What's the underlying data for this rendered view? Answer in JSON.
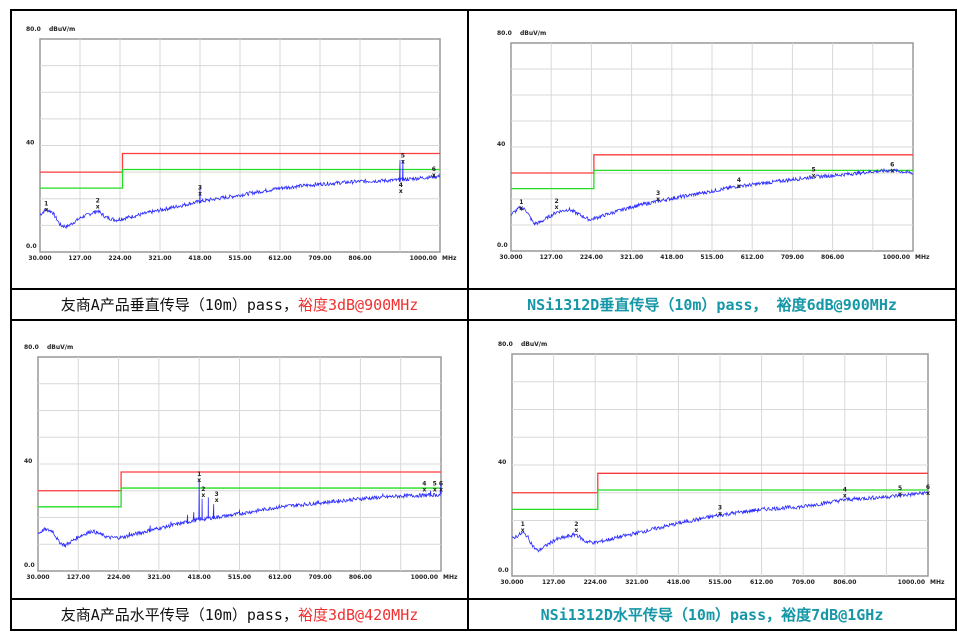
{
  "colors": {
    "limit_red": "#ff3b3b",
    "limit_green": "#22dd22",
    "trace": "#2b2bff",
    "caption_red": "#f03030",
    "caption_teal": "#1597a7",
    "grid": "#d8d8d8"
  },
  "captions": [
    {
      "plain": "友商A产品垂直传导（10m）pass，",
      "highlight": "裕度3dB@900MHz",
      "highlight_color": "red"
    },
    {
      "plain": "",
      "highlight": "NSi1312D垂直传导（10m）pass， 裕度6dB@900MHz",
      "highlight_color": "teal"
    },
    {
      "plain": "友商A产品水平传导（10m）pass，",
      "highlight": "裕度3dB@420MHz",
      "highlight_color": "red"
    },
    {
      "plain": "",
      "highlight": "NSi1312D水平传导（10m）pass，裕度7dB@1GHz",
      "highlight_color": "teal"
    }
  ],
  "chart_data": [
    {
      "type": "line",
      "ylabel": "dBuV/m",
      "xunit": "MHz",
      "xlim": [
        30,
        1000
      ],
      "ylim": [
        0,
        80
      ],
      "grid": true,
      "ytick_labels": [
        "80.0",
        "40",
        "0.0"
      ],
      "xtick_labels": [
        "30.000",
        "127.00",
        "224.00",
        "321.00",
        "418.00",
        "515.00",
        "612.00",
        "709.00",
        "806.00",
        "",
        "1000.00"
      ],
      "limits": [
        {
          "color": "red",
          "segments": [
            [
              30,
              230,
              30
            ],
            [
              230,
              1000,
              37
            ]
          ]
        },
        {
          "color": "green",
          "segments": [
            [
              30,
              230,
              24
            ],
            [
              230,
              1000,
              31
            ]
          ]
        }
      ],
      "trace": [
        [
          30,
          14
        ],
        [
          45,
          16
        ],
        [
          60,
          15
        ],
        [
          80,
          10
        ],
        [
          95,
          9.5
        ],
        [
          130,
          13
        ],
        [
          170,
          15.5
        ],
        [
          190,
          13
        ],
        [
          215,
          12
        ],
        [
          230,
          12.5
        ],
        [
          300,
          15
        ],
        [
          418,
          19
        ],
        [
          500,
          21
        ],
        [
          612,
          24
        ],
        [
          709,
          25.5
        ],
        [
          806,
          26.5
        ],
        [
          900,
          27
        ],
        [
          1000,
          28.5
        ]
      ],
      "spikes": [
        [
          418,
          24.5
        ],
        [
          903,
          34.5
        ],
        [
          910,
          34.5
        ]
      ],
      "markers": [
        {
          "label": "1",
          "f": 45,
          "level": 16
        },
        {
          "label": "2",
          "f": 170,
          "level": 17
        },
        {
          "label": "3",
          "f": 418,
          "level": 22
        },
        {
          "label": "4",
          "f": 905,
          "level": 23
        },
        {
          "label": "5",
          "f": 910,
          "level": 34
        },
        {
          "label": "6",
          "f": 985,
          "level": 29
        }
      ]
    },
    {
      "type": "line",
      "ylabel": "dBuV/m",
      "xunit": "MHz",
      "xlim": [
        30,
        1000
      ],
      "ylim": [
        0,
        80
      ],
      "grid": true,
      "ytick_labels": [
        "80.0",
        "40",
        "0.0"
      ],
      "xtick_labels": [
        "30.000",
        "127.00",
        "224.00",
        "321.00",
        "418.00",
        "515.00",
        "612.00",
        "709.00",
        "806.00",
        "",
        "1000.00"
      ],
      "limits": [
        {
          "color": "red",
          "segments": [
            [
              30,
              230,
              30
            ],
            [
              230,
              1000,
              37
            ]
          ]
        },
        {
          "color": "green",
          "segments": [
            [
              30,
              230,
              24
            ],
            [
              230,
              1000,
              31
            ]
          ]
        }
      ],
      "trace": [
        [
          30,
          14
        ],
        [
          50,
          16.5
        ],
        [
          65,
          16
        ],
        [
          85,
          10.5
        ],
        [
          100,
          11
        ],
        [
          140,
          15
        ],
        [
          170,
          16
        ],
        [
          195,
          14
        ],
        [
          220,
          12
        ],
        [
          240,
          13
        ],
        [
          321,
          17
        ],
        [
          410,
          20
        ],
        [
          515,
          23
        ],
        [
          580,
          25
        ],
        [
          612,
          25.5
        ],
        [
          709,
          27.5
        ],
        [
          760,
          28.5
        ],
        [
          806,
          29
        ],
        [
          900,
          30.5
        ],
        [
          950,
          31
        ],
        [
          1000,
          30
        ]
      ],
      "spikes": [],
      "markers": [
        {
          "label": "1",
          "f": 55,
          "level": 16.5
        },
        {
          "label": "2",
          "f": 140,
          "level": 17
        },
        {
          "label": "3",
          "f": 385,
          "level": 20
        },
        {
          "label": "4",
          "f": 580,
          "level": 25
        },
        {
          "label": "5",
          "f": 760,
          "level": 29
        },
        {
          "label": "6",
          "f": 950,
          "level": 31
        }
      ]
    },
    {
      "type": "line",
      "ylabel": "dBuV/m",
      "xunit": "MHz",
      "xlim": [
        30,
        1000
      ],
      "ylim": [
        0,
        80
      ],
      "grid": true,
      "ytick_labels": [
        "80.0",
        "40",
        "0.0"
      ],
      "xtick_labels": [
        "30.000",
        "127.00",
        "224.00",
        "321.00",
        "418.00",
        "515.00",
        "612.00",
        "709.00",
        "806.00",
        "",
        "1000.00"
      ],
      "limits": [
        {
          "color": "red",
          "segments": [
            [
              30,
              230,
              30
            ],
            [
              230,
              1000,
              37
            ]
          ]
        },
        {
          "color": "green",
          "segments": [
            [
              30,
              230,
              24
            ],
            [
              230,
              1000,
              31
            ]
          ]
        }
      ],
      "trace": [
        [
          30,
          14
        ],
        [
          45,
          15.5
        ],
        [
          65,
          15
        ],
        [
          80,
          11
        ],
        [
          95,
          9.5
        ],
        [
          130,
          13
        ],
        [
          160,
          15
        ],
        [
          200,
          12.5
        ],
        [
          230,
          12.5
        ],
        [
          321,
          16
        ],
        [
          410,
          19
        ],
        [
          500,
          21
        ],
        [
          612,
          24
        ],
        [
          709,
          25.5
        ],
        [
          806,
          27
        ],
        [
          900,
          28
        ],
        [
          1000,
          28.5
        ]
      ],
      "spikes": [
        [
          250,
          14.5
        ],
        [
          300,
          17
        ],
        [
          350,
          18.5
        ],
        [
          390,
          21
        ],
        [
          405,
          22
        ],
        [
          418,
          34
        ],
        [
          425,
          27
        ],
        [
          440,
          27.5
        ],
        [
          453,
          25
        ],
        [
          515,
          23
        ],
        [
          655,
          25
        ],
        [
          820,
          28
        ],
        [
          860,
          29
        ],
        [
          975,
          30
        ],
        [
          1000,
          32.5
        ]
      ],
      "markers": [
        {
          "label": "1",
          "f": 418,
          "level": 34
        },
        {
          "label": "2",
          "f": 428,
          "level": 28.5
        },
        {
          "label": "3",
          "f": 460,
          "level": 26.5
        },
        {
          "label": "4",
          "f": 960,
          "level": 30.5
        },
        {
          "label": "5",
          "f": 985,
          "level": 30.5
        },
        {
          "label": "6",
          "f": 1000,
          "level": 30.5
        }
      ]
    },
    {
      "type": "line",
      "ylabel": "dBuV/m",
      "xunit": "MHz",
      "xlim": [
        30,
        1000
      ],
      "ylim": [
        0,
        80
      ],
      "grid": true,
      "ytick_labels": [
        "80.0",
        "40",
        "0.0"
      ],
      "xtick_labels": [
        "30.000",
        "127.00",
        "224.00",
        "321.00",
        "418.00",
        "515.00",
        "612.00",
        "709.00",
        "806.00",
        "",
        "1000.00"
      ],
      "limits": [
        {
          "color": "red",
          "segments": [
            [
              30,
              230,
              30
            ],
            [
              230,
              1000,
              37
            ]
          ]
        },
        {
          "color": "green",
          "segments": [
            [
              30,
              230,
              24
            ],
            [
              230,
              1000,
              31
            ]
          ]
        }
      ],
      "trace": [
        [
          30,
          13.5
        ],
        [
          55,
          15.5
        ],
        [
          65,
          14.5
        ],
        [
          80,
          10.5
        ],
        [
          90,
          9
        ],
        [
          130,
          13
        ],
        [
          180,
          15
        ],
        [
          200,
          12.5
        ],
        [
          224,
          12
        ],
        [
          321,
          15.5
        ],
        [
          418,
          19
        ],
        [
          515,
          22
        ],
        [
          612,
          24
        ],
        [
          709,
          25
        ],
        [
          806,
          27.5
        ],
        [
          900,
          28.5
        ],
        [
          1000,
          30
        ]
      ],
      "spikes": [],
      "markers": [
        {
          "label": "1",
          "f": 55,
          "level": 16.5
        },
        {
          "label": "2",
          "f": 180,
          "level": 16.5
        },
        {
          "label": "3",
          "f": 515,
          "level": 22.5
        },
        {
          "label": "4",
          "f": 806,
          "level": 29
        },
        {
          "label": "5",
          "f": 935,
          "level": 29.5
        },
        {
          "label": "6",
          "f": 1000,
          "level": 30
        }
      ]
    }
  ]
}
